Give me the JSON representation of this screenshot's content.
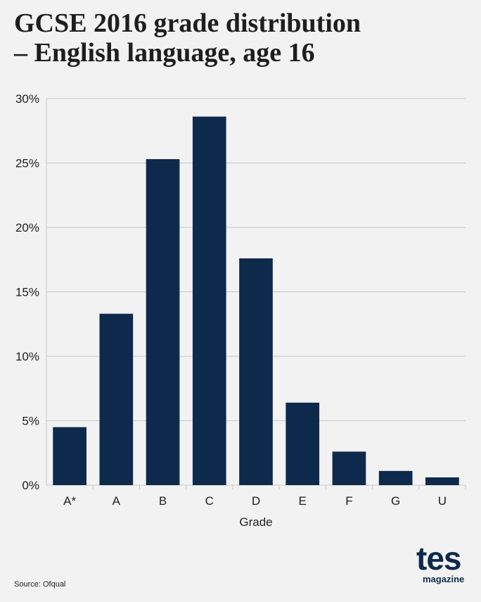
{
  "title_line1": "GCSE 2016 grade distribution",
  "title_line2": "– English language, age 16",
  "source": "Source: Ofqual",
  "logo": {
    "word": "tes",
    "sub": "magazine"
  },
  "colors": {
    "bar": "#0d2a4d",
    "grid": "#c8c8c8",
    "background": "#f2f2f2"
  },
  "chart_data": {
    "type": "bar",
    "categories": [
      "A*",
      "A",
      "B",
      "C",
      "D",
      "E",
      "F",
      "G",
      "U"
    ],
    "values": [
      4.5,
      13.3,
      25.3,
      28.6,
      17.6,
      6.4,
      2.6,
      1.1,
      0.6
    ],
    "xlabel": "Grade",
    "ylabel": "",
    "ylim": [
      0,
      30
    ],
    "yticks": [
      0,
      5,
      10,
      15,
      20,
      25,
      30
    ],
    "ytick_labels": [
      "0%",
      "5%",
      "10%",
      "15%",
      "20%",
      "25%",
      "30%"
    ],
    "grid": true
  }
}
